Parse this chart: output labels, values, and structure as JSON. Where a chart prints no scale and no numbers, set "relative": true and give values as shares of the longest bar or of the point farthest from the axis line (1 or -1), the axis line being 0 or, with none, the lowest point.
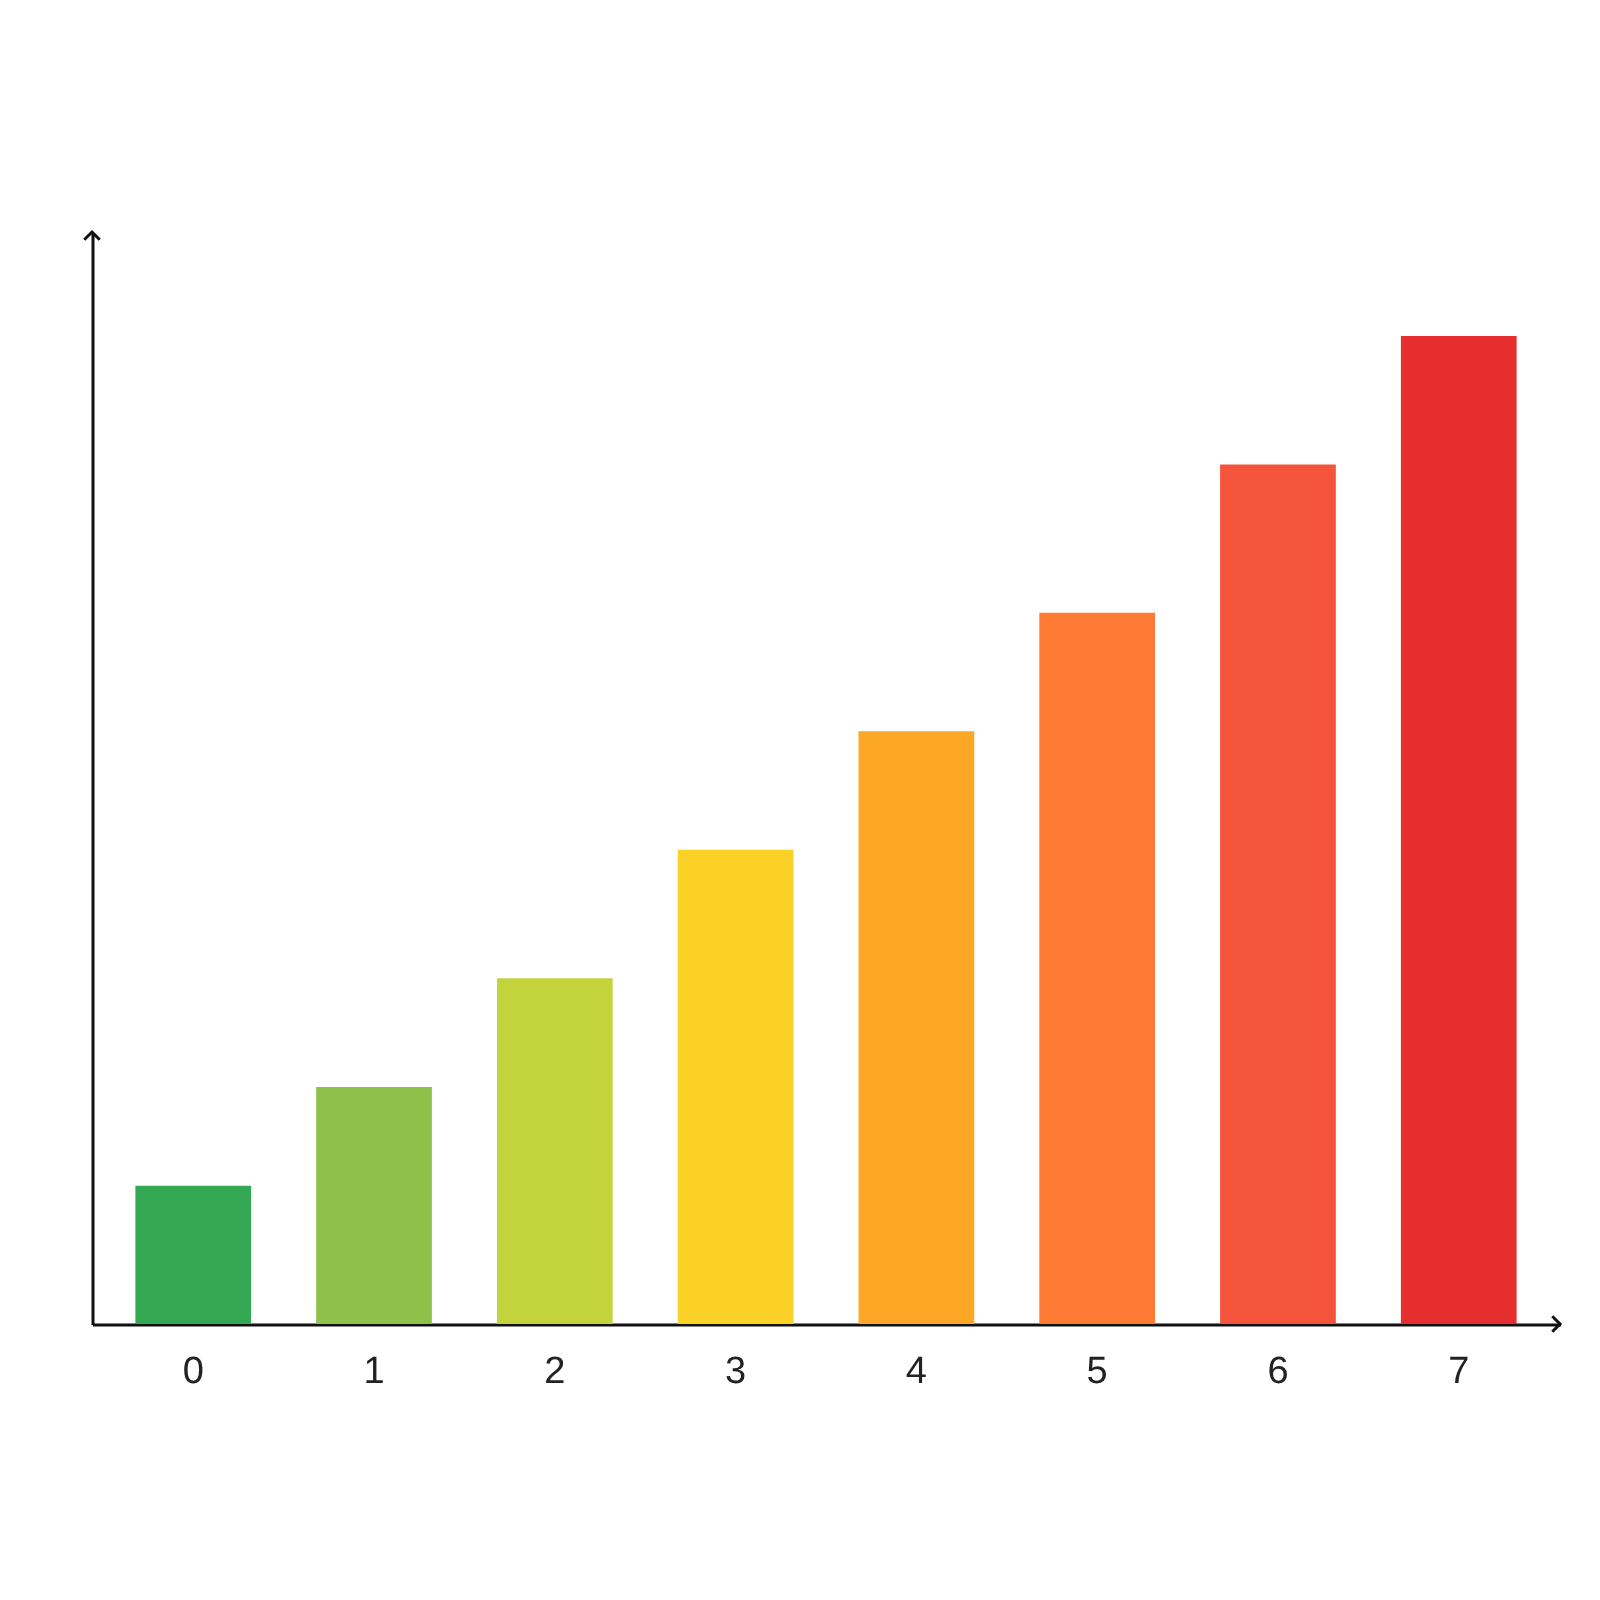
{
  "chart_data": {
    "type": "bar",
    "categories": [
      "0",
      "1",
      "2",
      "3",
      "4",
      "5",
      "6",
      "7"
    ],
    "values": [
      0.14,
      0.24,
      0.35,
      0.48,
      0.6,
      0.72,
      0.87,
      1
    ],
    "colors": [
      "#34a853",
      "#8fc04a",
      "#c3d33c",
      "#fbd027",
      "#fca726",
      "#fd7b34",
      "#f4533c",
      "#e62e2f"
    ],
    "relative": true
  }
}
